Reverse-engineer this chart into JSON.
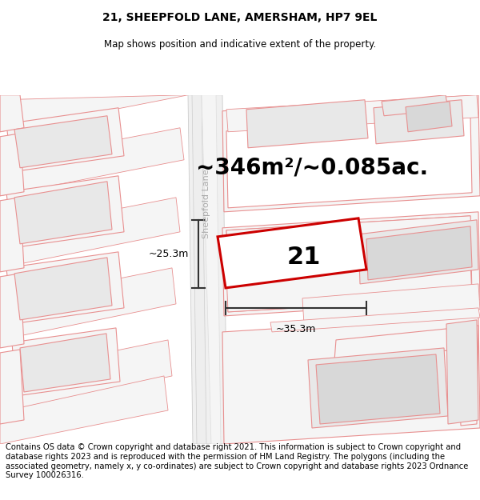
{
  "title_line1": "21, SHEEPFOLD LANE, AMERSHAM, HP7 9EL",
  "title_line2": "Map shows position and indicative extent of the property.",
  "area_label": "~346m²/~0.085ac.",
  "number_label": "21",
  "width_label": "~35.3m",
  "height_label": "~25.3m",
  "street_label": "Sheepfold Lane",
  "footer_text": "Contains OS data © Crown copyright and database right 2021. This information is subject to Crown copyright and database rights 2023 and is reproduced with the permission of HM Land Registry. The polygons (including the associated geometry, namely x, y co-ordinates) are subject to Crown copyright and database rights 2023 Ordnance Survey 100026316.",
  "bg_color": "#ffffff",
  "map_bg_color": "#f8f8f8",
  "plot_outline_color": "#cc0000",
  "other_outline_color": "#e89090",
  "building_fill": "#e8e8e8",
  "parcel_fill": "#f5f5f5",
  "white_fill": "#ffffff",
  "dim_line_color": "#333333",
  "street_color": "#c0c0c0",
  "title_fontsize": 10,
  "subtitle_fontsize": 8.5,
  "area_fontsize": 20,
  "number_fontsize": 22,
  "dim_fontsize": 9,
  "footer_fontsize": 7.2,
  "street_fontsize": 8
}
